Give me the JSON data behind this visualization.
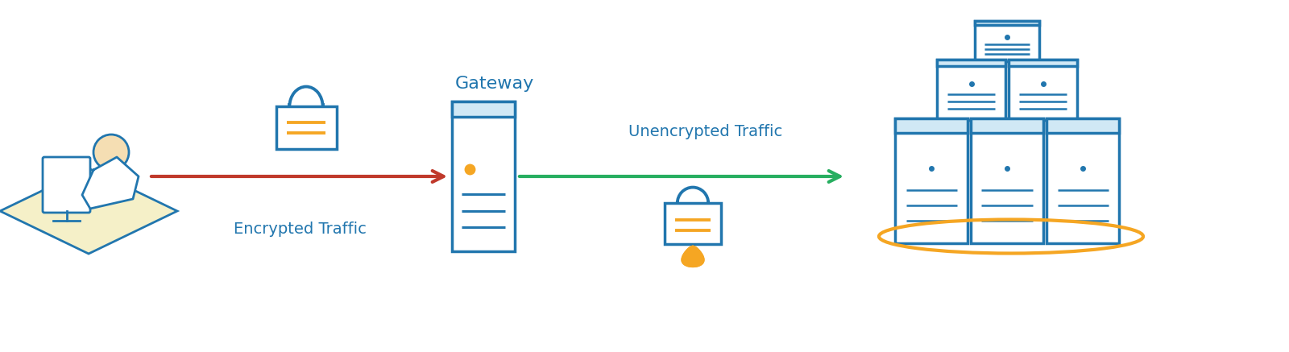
{
  "bg_color": "#ffffff",
  "blue": "#2176AE",
  "orange": "#F5A623",
  "red": "#C0392B",
  "green": "#27AE60",
  "text_blue": "#2176AE",
  "gateway_label": "Gateway",
  "encrypted_label": "Encrypted Traffic",
  "unencrypted_label": "Unencrypted Traffic",
  "figw": 16.0,
  "figh": 4.37
}
